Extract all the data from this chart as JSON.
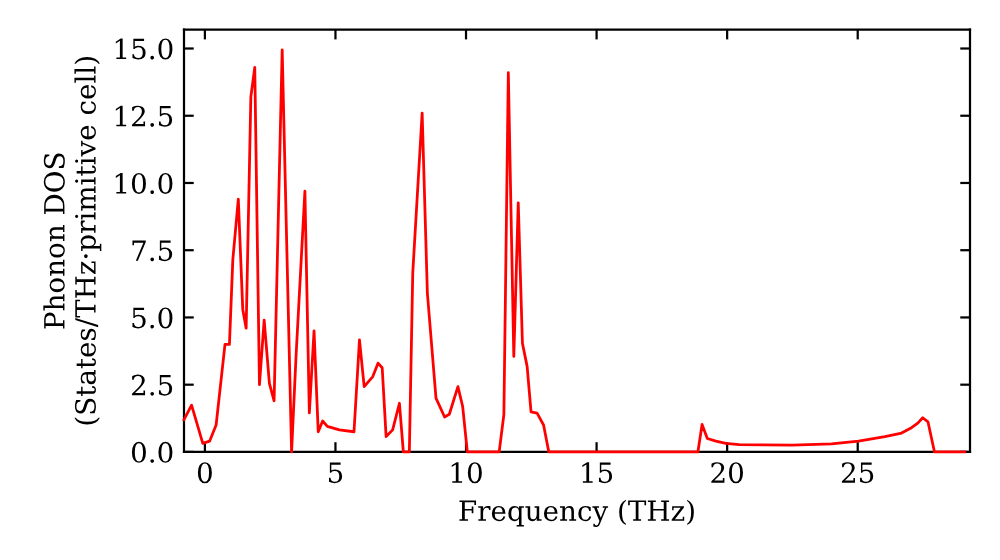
{
  "chart_data": {
    "type": "line",
    "xlabel": "Frequency (THz)",
    "ylabel": "Phonon DOS\n(States/THz·primitive cell)",
    "series": [
      {
        "color": "#ff0000",
        "x": [
          -0.8,
          -0.51,
          -0.08,
          0.18,
          0.43,
          0.77,
          0.94,
          1.07,
          1.28,
          1.45,
          1.58,
          1.76,
          1.91,
          2.09,
          2.27,
          2.47,
          2.65,
          2.96,
          3.32,
          3.49,
          3.83,
          4.0,
          4.18,
          4.34,
          4.51,
          4.69,
          5.15,
          5.71,
          5.92,
          6.1,
          6.43,
          6.63,
          6.79,
          6.94,
          7.19,
          7.45,
          7.6,
          7.83,
          7.96,
          8.32,
          8.52,
          8.85,
          9.18,
          9.36,
          9.69,
          9.87,
          10.05,
          11.27,
          11.45,
          11.62,
          11.83,
          12.0,
          12.16,
          12.34,
          12.49,
          12.72,
          12.97,
          13.17,
          18.88,
          19.04,
          19.24,
          19.57,
          19.95,
          20.46,
          22.49,
          24.0,
          25.03,
          26.04,
          26.68,
          27.06,
          27.3,
          27.49,
          27.69,
          27.94,
          29.1
        ],
        "values": [
          1.2,
          1.74,
          0.32,
          0.4,
          1.0,
          4.0,
          4.0,
          7.15,
          9.4,
          5.3,
          4.6,
          13.2,
          14.3,
          2.5,
          4.9,
          2.55,
          1.9,
          14.95,
          0,
          3.55,
          9.7,
          1.45,
          4.5,
          0.75,
          1.15,
          0.95,
          0.82,
          0.75,
          4.17,
          2.43,
          2.8,
          3.3,
          3.13,
          0.57,
          0.82,
          1.81,
          0,
          0,
          6.65,
          12.6,
          5.9,
          2.0,
          1.3,
          1.4,
          2.43,
          1.7,
          0,
          0,
          1.39,
          14.1,
          3.55,
          9.26,
          4.04,
          3.18,
          1.49,
          1.44,
          1.0,
          0,
          0,
          1.02,
          0.5,
          0.4,
          0.32,
          0.27,
          0.25,
          0.3,
          0.4,
          0.57,
          0.7,
          0.9,
          1.07,
          1.27,
          1.12,
          0,
          0
        ]
      }
    ],
    "xlim": [
      -0.8,
      29.3
    ],
    "ylim": [
      0,
      15.7
    ],
    "xticks": [
      0,
      5,
      10,
      15,
      20,
      25
    ],
    "yticks": [
      {
        "value": 0,
        "label": "0.0"
      },
      {
        "value": 2.5,
        "label": "2.5"
      },
      {
        "value": 5,
        "label": "5.0"
      },
      {
        "value": 7.5,
        "label": "7.5"
      },
      {
        "value": 10,
        "label": "10.0"
      },
      {
        "value": 12.5,
        "label": "12.5"
      },
      {
        "value": 15,
        "label": "15.0"
      }
    ],
    "grid": false,
    "marker": "none",
    "line_style": "solid"
  }
}
